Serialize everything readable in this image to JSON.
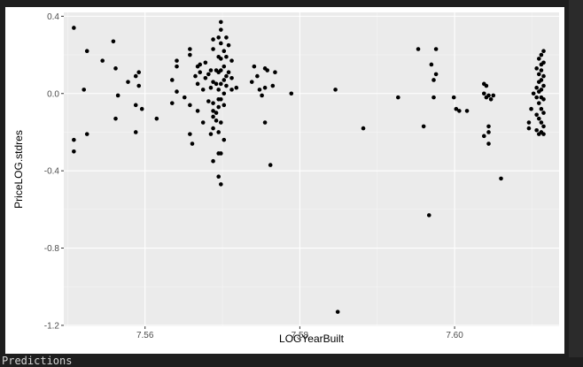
{
  "colors": {
    "panel_bg": "#ebebeb",
    "grid_major": "#ffffff",
    "grid_minor": "#f5f5f5",
    "point": "#000000",
    "page_bg": "#1e1e1e"
  },
  "console": {
    "output_label": "Predictions"
  },
  "chart_data": {
    "type": "scatter",
    "title": "",
    "xlabel": "LOGYearBuilt",
    "ylabel": "PriceLOG.stdres",
    "xlim": [
      7.5495,
      7.6135
    ],
    "ylim": [
      -1.205,
      0.42
    ],
    "x_ticks": [
      7.56,
      7.58,
      7.6
    ],
    "x_tick_labels": [
      "7.56",
      "7.58",
      "7.60"
    ],
    "y_ticks": [
      0.4,
      0.0,
      -0.4,
      -0.8,
      -1.2
    ],
    "y_tick_labels": [
      "0.4",
      "0.0",
      "-0.4",
      "-0.8",
      "-1.2"
    ],
    "grid": true,
    "points": [
      [
        7.5508,
        0.34
      ],
      [
        7.5508,
        -0.24
      ],
      [
        7.5508,
        -0.3
      ],
      [
        7.5521,
        0.02
      ],
      [
        7.5525,
        0.22
      ],
      [
        7.5525,
        -0.21
      ],
      [
        7.5545,
        0.17
      ],
      [
        7.5559,
        0.27
      ],
      [
        7.5562,
        0.13
      ],
      [
        7.5562,
        -0.13
      ],
      [
        7.5565,
        -0.01
      ],
      [
        7.5578,
        0.06
      ],
      [
        7.5588,
        0.09
      ],
      [
        7.5588,
        -0.06
      ],
      [
        7.5588,
        -0.2
      ],
      [
        7.5592,
        0.11
      ],
      [
        7.5592,
        0.04
      ],
      [
        7.5596,
        -0.08
      ],
      [
        7.5615,
        -0.13
      ],
      [
        7.5635,
        0.07
      ],
      [
        7.5635,
        -0.05
      ],
      [
        7.5641,
        0.17
      ],
      [
        7.5641,
        0.14
      ],
      [
        7.5641,
        0.01
      ],
      [
        7.5651,
        -0.02
      ],
      [
        7.5658,
        0.23
      ],
      [
        7.5658,
        0.2
      ],
      [
        7.5658,
        -0.06
      ],
      [
        7.5658,
        -0.21
      ],
      [
        7.5661,
        -0.26
      ],
      [
        7.5665,
        0.09
      ],
      [
        7.5668,
        0.14
      ],
      [
        7.5668,
        0.05
      ],
      [
        7.5668,
        -0.09
      ],
      [
        7.5671,
        0.15
      ],
      [
        7.5671,
        0.11
      ],
      [
        7.5675,
        0.02
      ],
      [
        7.5675,
        -0.15
      ],
      [
        7.5678,
        0.16
      ],
      [
        7.5678,
        0.08
      ],
      [
        7.5682,
        0.1
      ],
      [
        7.5682,
        -0.04
      ],
      [
        7.5685,
        0.12
      ],
      [
        7.5685,
        0.03
      ],
      [
        7.5685,
        -0.21
      ],
      [
        7.5688,
        0.28
      ],
      [
        7.5688,
        0.23
      ],
      [
        7.5688,
        0.06
      ],
      [
        7.5688,
        -0.05
      ],
      [
        7.5688,
        -0.09
      ],
      [
        7.5688,
        -0.12
      ],
      [
        7.5688,
        -0.18
      ],
      [
        7.5688,
        -0.35
      ],
      [
        7.5692,
        0.12
      ],
      [
        7.5692,
        0.05
      ],
      [
        7.5692,
        -0.1
      ],
      [
        7.5692,
        -0.14
      ],
      [
        7.5695,
        0.29
      ],
      [
        7.5695,
        0.19
      ],
      [
        7.5695,
        0.11
      ],
      [
        7.5695,
        0.02
      ],
      [
        7.5695,
        -0.03
      ],
      [
        7.5695,
        -0.07
      ],
      [
        7.5695,
        -0.2
      ],
      [
        7.5695,
        -0.31
      ],
      [
        7.5695,
        -0.43
      ],
      [
        7.5698,
        0.37
      ],
      [
        7.5698,
        0.33
      ],
      [
        7.5698,
        0.26
      ],
      [
        7.5698,
        0.18
      ],
      [
        7.5698,
        0.12
      ],
      [
        7.5698,
        0.05
      ],
      [
        7.5698,
        -0.03
      ],
      [
        7.5698,
        -0.15
      ],
      [
        7.5698,
        -0.31
      ],
      [
        7.5698,
        -0.47
      ],
      [
        7.5702,
        0.22
      ],
      [
        7.5702,
        0.14
      ],
      [
        7.5702,
        0.07
      ],
      [
        7.5702,
        0.0
      ],
      [
        7.5702,
        -0.06
      ],
      [
        7.5702,
        -0.24
      ],
      [
        7.5705,
        0.29
      ],
      [
        7.5705,
        0.19
      ],
      [
        7.5705,
        0.09
      ],
      [
        7.5705,
        0.04
      ],
      [
        7.5708,
        0.25
      ],
      [
        7.5708,
        0.11
      ],
      [
        7.5712,
        0.17
      ],
      [
        7.5712,
        0.08
      ],
      [
        7.5712,
        0.02
      ],
      [
        7.5718,
        0.03
      ],
      [
        7.5738,
        0.06
      ],
      [
        7.5741,
        0.14
      ],
      [
        7.5745,
        0.09
      ],
      [
        7.5748,
        0.02
      ],
      [
        7.5751,
        -0.01
      ],
      [
        7.5755,
        0.13
      ],
      [
        7.5755,
        0.03
      ],
      [
        7.5755,
        -0.15
      ],
      [
        7.5758,
        0.12
      ],
      [
        7.5762,
        -0.37
      ],
      [
        7.5765,
        0.04
      ],
      [
        7.5768,
        0.11
      ],
      [
        7.5789,
        0.0
      ],
      [
        7.5846,
        0.02
      ],
      [
        7.5849,
        -1.13
      ],
      [
        7.5882,
        -0.18
      ],
      [
        7.5927,
        -0.02
      ],
      [
        7.5953,
        0.23
      ],
      [
        7.596,
        -0.17
      ],
      [
        7.5967,
        -0.63
      ],
      [
        7.597,
        0.15
      ],
      [
        7.5973,
        -0.02
      ],
      [
        7.5973,
        0.07
      ],
      [
        7.5976,
        0.23
      ],
      [
        7.5976,
        0.1
      ],
      [
        7.5999,
        -0.02
      ],
      [
        7.6002,
        -0.08
      ],
      [
        7.6006,
        -0.09
      ],
      [
        7.6016,
        -0.09
      ],
      [
        7.6038,
        0.05
      ],
      [
        7.6038,
        0.0
      ],
      [
        7.6038,
        -0.22
      ],
      [
        7.6041,
        0.04
      ],
      [
        7.6041,
        -0.02
      ],
      [
        7.6044,
        -0.01
      ],
      [
        7.6044,
        -0.17
      ],
      [
        7.6044,
        -0.2
      ],
      [
        7.6044,
        -0.26
      ],
      [
        7.6047,
        -0.03
      ],
      [
        7.605,
        -0.01
      ],
      [
        7.606,
        -0.44
      ],
      [
        7.6096,
        -0.15
      ],
      [
        7.6096,
        -0.18
      ],
      [
        7.6099,
        -0.08
      ],
      [
        7.6102,
        0.0
      ],
      [
        7.6106,
        0.13
      ],
      [
        7.6106,
        0.03
      ],
      [
        7.6106,
        -0.02
      ],
      [
        7.6106,
        -0.11
      ],
      [
        7.6106,
        -0.19
      ],
      [
        7.6109,
        0.18
      ],
      [
        7.6109,
        0.1
      ],
      [
        7.6109,
        0.06
      ],
      [
        7.6109,
        0.01
      ],
      [
        7.6109,
        -0.05
      ],
      [
        7.6109,
        -0.13
      ],
      [
        7.6109,
        -0.21
      ],
      [
        7.6112,
        0.2
      ],
      [
        7.6112,
        0.15
      ],
      [
        7.6112,
        0.12
      ],
      [
        7.6112,
        0.07
      ],
      [
        7.6112,
        0.02
      ],
      [
        7.6112,
        -0.02
      ],
      [
        7.6112,
        -0.08
      ],
      [
        7.6112,
        -0.15
      ],
      [
        7.6112,
        -0.2
      ],
      [
        7.6115,
        0.22
      ],
      [
        7.6115,
        0.16
      ],
      [
        7.6115,
        0.09
      ],
      [
        7.6115,
        0.04
      ],
      [
        7.6115,
        -0.03
      ],
      [
        7.6115,
        -0.1
      ],
      [
        7.6115,
        -0.17
      ],
      [
        7.6115,
        -0.21
      ]
    ]
  }
}
